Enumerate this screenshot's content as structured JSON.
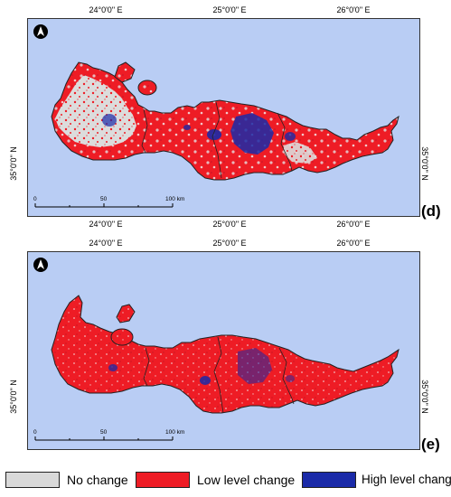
{
  "colors": {
    "sea": "#b9cdf4",
    "no_change": "#d9d9d9",
    "low_change": "#ee1c25",
    "high_change": "#1a2aa8",
    "border": "#222222"
  },
  "panels": [
    {
      "letter": "(d)",
      "longitude_ticks": [
        "24°0'0\" E",
        "25°0'0\" E",
        "26°0'0\" E"
      ],
      "latitude_tick": "35°0'0\" N",
      "scale": {
        "labels": [
          "0",
          "50",
          "100 km"
        ]
      },
      "north_arrow_icon": "north-arrow-icon"
    },
    {
      "letter": "(e)",
      "longitude_ticks": [
        "24°0'0\" E",
        "25°0'0\" E",
        "26°0'0\" E"
      ],
      "latitude_tick": "35°0'0\" N",
      "scale": {
        "labels": [
          "0",
          "50",
          "100 km"
        ]
      },
      "north_arrow_icon": "north-arrow-icon"
    }
  ],
  "legend": [
    {
      "label": "No change",
      "color": "#d9d9d9"
    },
    {
      "label": "Low level change",
      "color": "#ee1c25"
    },
    {
      "label": "High level change",
      "color": "#1a2aa8"
    }
  ]
}
